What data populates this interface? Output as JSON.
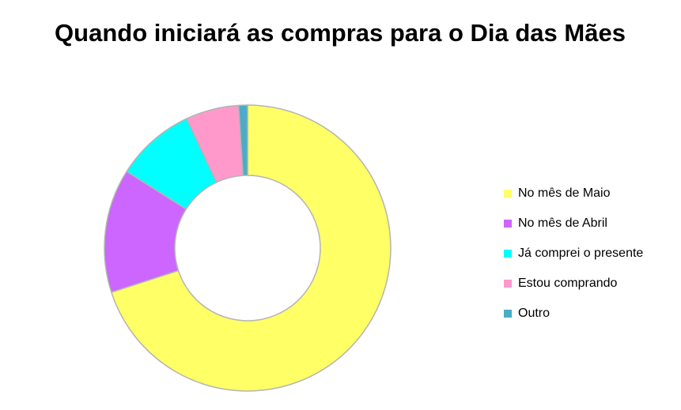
{
  "chart_data": {
    "type": "pie",
    "variant": "donut",
    "title": "Quando iniciará as compras para o Dia das Mães",
    "categories": [
      "No mês de Maio",
      "No mês de Abril",
      "Já comprei o presente",
      "Estou comprando",
      "Outro"
    ],
    "values": [
      70,
      14,
      9,
      6,
      1
    ],
    "unit": "%",
    "colors": [
      "#FFFF66",
      "#CC66FF",
      "#00FFFF",
      "#FF99CC",
      "#4BACC6"
    ],
    "legend_position": "right",
    "data_labels": false
  }
}
